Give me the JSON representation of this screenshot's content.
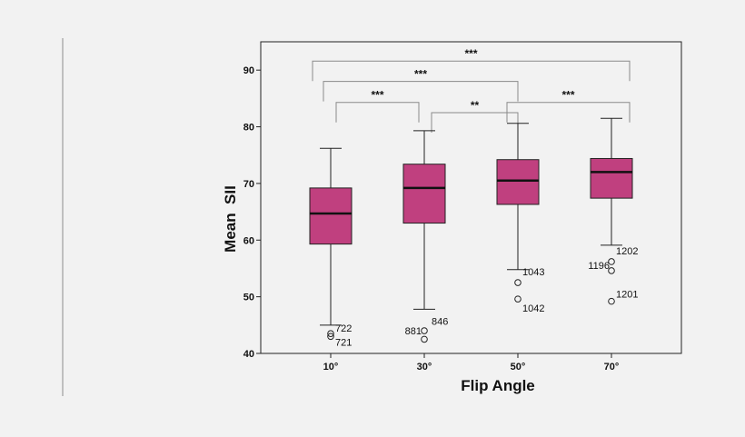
{
  "chart_data": {
    "type": "boxplot",
    "xlabel": "Flip Angle",
    "ylabel": "Mean  SII",
    "ylim": [
      40,
      95
    ],
    "yticks": [
      40,
      50,
      60,
      70,
      80,
      90
    ],
    "categories": [
      "10°",
      "30°",
      "50°",
      "70°"
    ],
    "box_color": "#c0407f",
    "boxes": [
      {
        "category": "10°",
        "whisker_low": 45.0,
        "q1": 59.3,
        "median": 64.7,
        "q3": 69.2,
        "whisker_high": 76.2,
        "outliers": [
          {
            "value": 43.5,
            "label": "722"
          },
          {
            "value": 43.0,
            "label": "721"
          }
        ]
      },
      {
        "category": "30°",
        "whisker_low": 47.8,
        "q1": 63.0,
        "median": 69.2,
        "q3": 73.4,
        "whisker_high": 79.3,
        "outliers": [
          {
            "value": 44.0,
            "label": "881"
          },
          {
            "value": 42.5,
            "label": "846"
          }
        ]
      },
      {
        "category": "50°",
        "whisker_low": 54.8,
        "q1": 66.3,
        "median": 70.5,
        "q3": 74.2,
        "whisker_high": 80.6,
        "outliers": [
          {
            "value": 52.5,
            "label": "1043"
          },
          {
            "value": 49.6,
            "label": "1042"
          }
        ]
      },
      {
        "category": "70°",
        "whisker_low": 59.1,
        "q1": 67.4,
        "median": 72.0,
        "q3": 74.4,
        "whisker_high": 81.5,
        "outliers": [
          {
            "value": 56.2,
            "label": "1202"
          },
          {
            "value": 54.6,
            "label": "1196"
          },
          {
            "value": 49.2,
            "label": "1201"
          }
        ]
      }
    ],
    "significance": [
      {
        "from": "10°",
        "to": "30°",
        "label": "***",
        "level": 84.3
      },
      {
        "from": "10°",
        "to": "50°",
        "label": "***",
        "level": 88.0
      },
      {
        "from": "10°",
        "to": "70°",
        "label": "***",
        "level": 91.6
      },
      {
        "from": "30°",
        "to": "50°",
        "label": "**",
        "level": 82.5
      },
      {
        "from": "50°",
        "to": "70°",
        "label": "***",
        "level": 84.3
      }
    ]
  }
}
